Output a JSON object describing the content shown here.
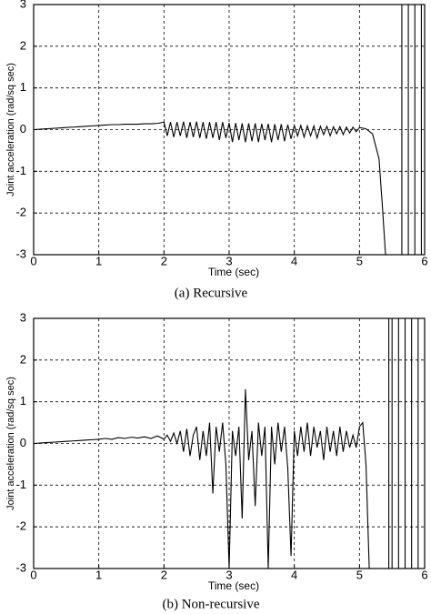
{
  "chart_data": [
    {
      "type": "line",
      "xlabel": "Time (sec)",
      "ylabel": "Joint acceleration (rad/sq sec)",
      "caption": "(a) Recursive",
      "xlim": [
        0,
        6
      ],
      "ylim": [
        -3,
        3
      ],
      "xticks": [
        0,
        1,
        2,
        3,
        4,
        5,
        6
      ],
      "yticks": [
        -3,
        -2,
        -1,
        0,
        1,
        2,
        3
      ],
      "grid": true,
      "x": [
        0,
        0.1,
        0.2,
        0.3,
        0.4,
        0.5,
        0.6,
        0.7,
        0.8,
        0.9,
        1,
        1.1,
        1.2,
        1.3,
        1.4,
        1.5,
        1.6,
        1.7,
        1.8,
        1.9,
        2,
        2.05,
        2.1,
        2.15,
        2.2,
        2.25,
        2.3,
        2.35,
        2.4,
        2.45,
        2.5,
        2.55,
        2.6,
        2.65,
        2.7,
        2.75,
        2.8,
        2.85,
        2.9,
        2.95,
        3,
        3.05,
        3.1,
        3.15,
        3.2,
        3.25,
        3.3,
        3.35,
        3.4,
        3.45,
        3.5,
        3.55,
        3.6,
        3.65,
        3.7,
        3.75,
        3.8,
        3.85,
        3.9,
        3.95,
        4,
        4.05,
        4.1,
        4.15,
        4.2,
        4.25,
        4.3,
        4.35,
        4.4,
        4.45,
        4.5,
        4.55,
        4.6,
        4.65,
        4.7,
        4.75,
        4.8,
        4.85,
        4.9,
        4.95,
        5,
        5.1,
        5.2,
        5.3,
        5.35,
        5.4,
        5.65,
        5.65,
        5.75,
        5.75,
        5.85,
        5.85,
        5.95,
        5.95
      ],
      "series": [
        {
          "color": "#000000",
          "values": [
            0,
            0.01,
            0.02,
            0.03,
            0.04,
            0.05,
            0.06,
            0.07,
            0.08,
            0.09,
            0.1,
            0.11,
            0.12,
            0.12,
            0.13,
            0.13,
            0.13,
            0.14,
            0.14,
            0.15,
            0.18,
            -0.15,
            0.18,
            -0.18,
            0.18,
            -0.15,
            0.19,
            -0.2,
            0.18,
            -0.18,
            0.19,
            -0.2,
            0.18,
            -0.22,
            0.18,
            -0.2,
            0.18,
            -0.25,
            0.18,
            -0.2,
            0.16,
            -0.3,
            0.16,
            -0.25,
            0.15,
            -0.3,
            0.15,
            -0.28,
            0.15,
            -0.3,
            0.14,
            -0.25,
            0.14,
            -0.3,
            0.13,
            -0.25,
            0.13,
            -0.28,
            0.12,
            -0.22,
            0.1,
            -0.15,
            0.1,
            -0.18,
            0.09,
            -0.15,
            0.09,
            -0.2,
            0.08,
            -0.12,
            0.08,
            -0.15,
            0.07,
            -0.1,
            0.07,
            -0.12,
            0.06,
            -0.08,
            0.06,
            -0.05,
            0.05,
            0.02,
            -0.1,
            -0.7,
            -1.8,
            -3,
            -3,
            3,
            3,
            -3,
            -3,
            3,
            3,
            -3
          ]
        }
      ]
    },
    {
      "type": "line",
      "xlabel": "Time (sec)",
      "ylabel": "Joint acceleration (rad/sq sec)",
      "caption": "(b) Non-recursive",
      "xlim": [
        0,
        6
      ],
      "ylim": [
        -3,
        3
      ],
      "xticks": [
        0,
        1,
        2,
        3,
        4,
        5,
        6
      ],
      "yticks": [
        -3,
        -2,
        -1,
        0,
        1,
        2,
        3
      ],
      "grid": true,
      "x": [
        0,
        0.1,
        0.2,
        0.3,
        0.4,
        0.5,
        0.6,
        0.7,
        0.8,
        0.9,
        1,
        1.1,
        1.2,
        1.3,
        1.4,
        1.5,
        1.6,
        1.7,
        1.8,
        1.9,
        2,
        2.05,
        2.1,
        2.15,
        2.2,
        2.25,
        2.3,
        2.35,
        2.4,
        2.45,
        2.5,
        2.55,
        2.6,
        2.65,
        2.7,
        2.75,
        2.8,
        2.85,
        2.9,
        2.95,
        3,
        3.05,
        3.1,
        3.15,
        3.2,
        3.25,
        3.3,
        3.35,
        3.4,
        3.45,
        3.5,
        3.55,
        3.6,
        3.65,
        3.7,
        3.75,
        3.8,
        3.85,
        3.9,
        3.95,
        4,
        4.05,
        4.1,
        4.15,
        4.2,
        4.25,
        4.3,
        4.35,
        4.4,
        4.45,
        4.5,
        4.55,
        4.6,
        4.65,
        4.7,
        4.75,
        4.8,
        4.85,
        4.9,
        4.95,
        5,
        5.05,
        5.1,
        5.15,
        5.45,
        5.45,
        5.5,
        5.5,
        5.6,
        5.6,
        5.7,
        5.7,
        5.8,
        5.8,
        5.9,
        5.9,
        6
      ],
      "series": [
        {
          "color": "#000000",
          "values": [
            0,
            0.01,
            0.02,
            0.03,
            0.04,
            0.05,
            0.06,
            0.07,
            0.08,
            0.09,
            0.1,
            0.12,
            0.1,
            0.14,
            0.12,
            0.15,
            0.13,
            0.16,
            0.12,
            0.18,
            0.1,
            0.2,
            0.05,
            0.25,
            0,
            0.3,
            -0.2,
            0.35,
            -0.3,
            0.2,
            0.4,
            -0.4,
            0.3,
            -0.3,
            0.5,
            -1.2,
            0.4,
            -0.2,
            0.5,
            -0.5,
            -3,
            0.3,
            -0.3,
            0.4,
            -1.8,
            1.3,
            -0.4,
            0.3,
            -1.5,
            0.5,
            -0.3,
            0.4,
            -3,
            0.4,
            -0.5,
            0.5,
            -0.2,
            0.4,
            -0.6,
            -2.7,
            0.3,
            -0.3,
            0.4,
            -0.2,
            0.5,
            -0.3,
            0.4,
            -0.1,
            0.3,
            -0.4,
            0.4,
            -0.2,
            0.3,
            -0.3,
            0.4,
            -0.2,
            0.3,
            -0.1,
            0.2,
            -0.1,
            0.4,
            0.5,
            -0.5,
            -3,
            -3,
            3,
            3,
            -3,
            -3,
            3,
            3,
            -3,
            -3,
            3,
            3,
            -3,
            -3
          ]
        }
      ]
    }
  ]
}
